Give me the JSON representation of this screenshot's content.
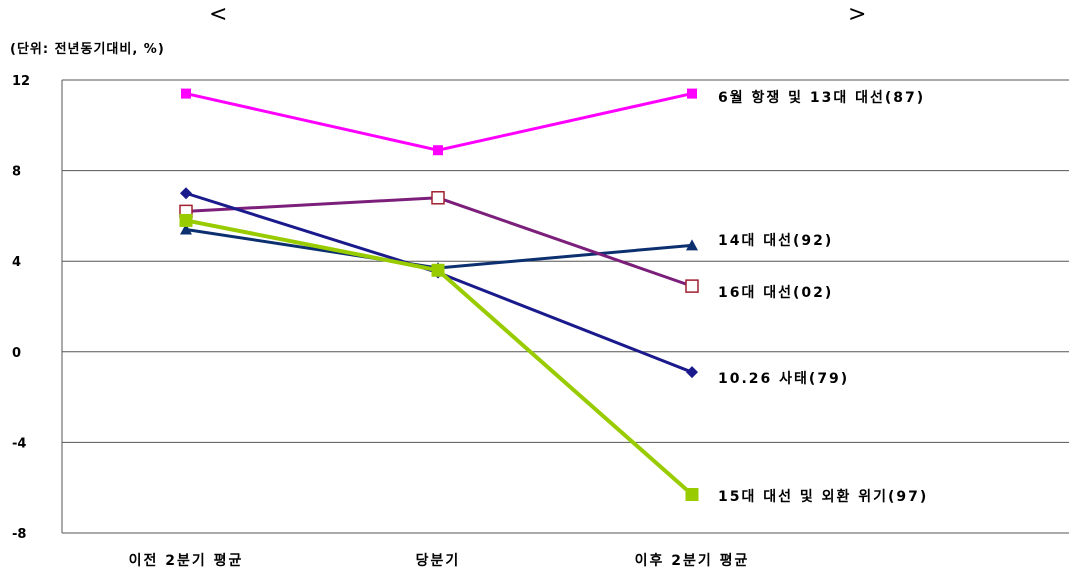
{
  "header": {
    "title_left": "<",
    "title_right": ">",
    "unit": "(단위: 전년동기대비, %)"
  },
  "chart_data": {
    "type": "line",
    "categories": [
      "이전 2분기 평균",
      "당분기",
      "이후 2분기 평균"
    ],
    "ylim": [
      -8,
      12
    ],
    "yticks": [
      12,
      8,
      4,
      0,
      -4,
      -8
    ],
    "grid": true,
    "series": [
      {
        "name": "6월 항쟁 및 13대 대선(87)",
        "values": [
          11.4,
          8.9,
          11.4
        ],
        "color": "#ff00ff",
        "marker": "square-filled"
      },
      {
        "name": "14대 대선(92)",
        "values": [
          5.4,
          3.7,
          4.7
        ],
        "color": "#0b2f6f",
        "marker": "triangle"
      },
      {
        "name": "16대 대선(02)",
        "values": [
          6.2,
          6.8,
          2.9
        ],
        "color": "#7b1f7b",
        "marker": "square-open"
      },
      {
        "name": "10.26 사태(79)",
        "values": [
          7.0,
          3.5,
          -0.9
        ],
        "color": "#1a1a8c",
        "marker": "diamond"
      },
      {
        "name": "15대 대선 및 외환 위기(97)",
        "values": [
          5.8,
          3.6,
          -6.3
        ],
        "color": "#99cc00",
        "marker": "square-filled"
      }
    ]
  }
}
